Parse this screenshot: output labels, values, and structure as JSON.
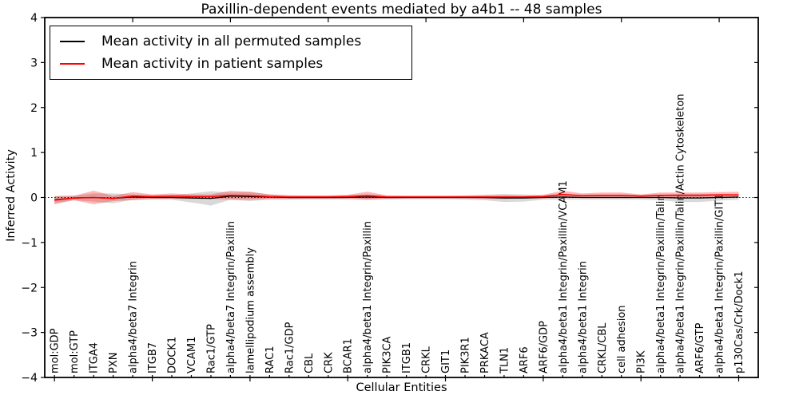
{
  "figure": {
    "title": "Paxillin-dependent events mediated by a4b1 -- 48 samples",
    "xlabel": "Cellular Entities",
    "ylabel": "Inferred Activity"
  },
  "legend": {
    "items": [
      {
        "label": "Mean activity in all permuted samples",
        "color": "#000000"
      },
      {
        "label": "Mean activity in patient samples",
        "color": "#ff0000"
      }
    ]
  },
  "chart_data": {
    "type": "line",
    "title": "Paxillin-dependent events mediated by a4b1 -- 48 samples",
    "xlabel": "Cellular Entities",
    "ylabel": "Inferred Activity",
    "ylim": [
      -4,
      4
    ],
    "yticks": [
      4,
      3,
      2,
      1,
      0,
      -1,
      -2,
      -3,
      -4
    ],
    "yticklabels": [
      "4",
      "3",
      "2",
      "1",
      "0",
      "−1",
      "−2",
      "−3",
      "−4"
    ],
    "zero_line_style": "dotted",
    "legend_position": "upper left",
    "grid": false,
    "categories": [
      "mol:GDP",
      "mol:GTP",
      "ITGA4",
      "PXN",
      "alpha4/beta7 Integrin",
      "ITGB7",
      "DOCK1",
      "VCAM1",
      "Rac1/GTP",
      "alpha4/beta7 Integrin/Paxillin",
      "lamellipodium assembly",
      "RAC1",
      "Rac1/GDP",
      "CBL",
      "CRK",
      "BCAR1",
      "alpha4/beta1 Integrin/Paxillin",
      "PIK3CA",
      "ITGB1",
      "CRKL",
      "GIT1",
      "PIK3R1",
      "PRKACA",
      "TLN1",
      "ARF6",
      "ARF6/GDP",
      "alpha4/beta1 Integrin/Paxillin/VCAM1",
      "alpha4/beta1 Integrin",
      "CRKL/CBL",
      "cell adhesion",
      "PI3K",
      "alpha4/beta1 Integrin/Paxillin/Talin",
      "alpha4/beta1 Integrin/Paxillin/Talin/Actin Cytoskeleton",
      "ARF6/GTP",
      "alpha4/beta1 Integrin/Paxillin/GIT1",
      "p130Cas/Crk/Dock1"
    ],
    "series": [
      {
        "name": "Mean activity in all permuted samples",
        "color": "#000000",
        "band_color": "rgba(130,130,130,0.30)",
        "mean": [
          -0.05,
          -0.01,
          0.0,
          -0.02,
          0.01,
          0.0,
          0.0,
          -0.01,
          -0.02,
          0.03,
          0.02,
          0.01,
          0.0,
          0.0,
          0.0,
          0.0,
          0.01,
          0.0,
          0.0,
          0.0,
          0.0,
          0.0,
          0.0,
          -0.01,
          -0.01,
          0.0,
          0.01,
          0.0,
          0.0,
          0.0,
          0.0,
          0.0,
          -0.01,
          -0.01,
          0.0,
          0.01
        ],
        "std": [
          0.08,
          0.05,
          0.09,
          0.11,
          0.06,
          0.05,
          0.05,
          0.1,
          0.16,
          0.08,
          0.1,
          0.06,
          0.05,
          0.04,
          0.04,
          0.05,
          0.06,
          0.04,
          0.04,
          0.04,
          0.04,
          0.05,
          0.06,
          0.09,
          0.08,
          0.05,
          0.06,
          0.05,
          0.05,
          0.05,
          0.05,
          0.06,
          0.09,
          0.09,
          0.07,
          0.06
        ]
      },
      {
        "name": "Mean activity in patient samples",
        "color": "#ff0000",
        "band_color": "rgba(255,0,0,0.28)",
        "mean": [
          -0.06,
          -0.01,
          0.0,
          -0.02,
          0.03,
          0.02,
          0.03,
          0.02,
          0.02,
          0.05,
          0.04,
          0.02,
          0.01,
          0.01,
          0.01,
          0.02,
          0.04,
          0.01,
          0.01,
          0.01,
          0.01,
          0.01,
          0.01,
          0.01,
          0.01,
          0.02,
          0.07,
          0.04,
          0.05,
          0.05,
          0.03,
          0.05,
          0.05,
          0.05,
          0.06,
          0.06
        ],
        "std": [
          0.09,
          0.05,
          0.15,
          0.06,
          0.09,
          0.05,
          0.06,
          0.05,
          0.05,
          0.1,
          0.09,
          0.05,
          0.04,
          0.04,
          0.04,
          0.04,
          0.09,
          0.04,
          0.03,
          0.03,
          0.03,
          0.03,
          0.04,
          0.04,
          0.03,
          0.04,
          0.08,
          0.05,
          0.06,
          0.06,
          0.04,
          0.06,
          0.06,
          0.06,
          0.06,
          0.07
        ]
      }
    ]
  }
}
